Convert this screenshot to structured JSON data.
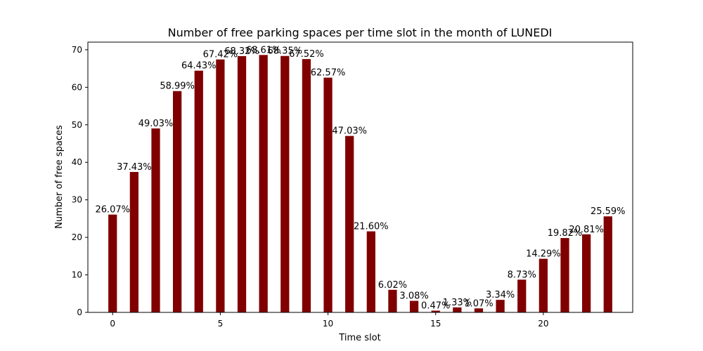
{
  "chart_data": {
    "type": "bar",
    "title": "Number of free parking spaces per time slot in the month of LUNEDI",
    "xlabel": "Time slot",
    "ylabel": "Number of free spaces",
    "x": [
      0,
      1,
      2,
      3,
      4,
      5,
      6,
      7,
      8,
      9,
      10,
      11,
      12,
      13,
      14,
      15,
      16,
      17,
      18,
      19,
      20,
      21,
      22,
      23
    ],
    "values": [
      26.07,
      37.43,
      49.03,
      58.99,
      64.43,
      67.42,
      68.32,
      68.61,
      68.35,
      67.52,
      62.57,
      47.03,
      21.6,
      6.02,
      3.08,
      0.47,
      1.33,
      1.07,
      3.34,
      8.73,
      14.29,
      19.82,
      20.81,
      25.59
    ],
    "bar_labels": [
      "26.07%",
      "37.43%",
      "49.03%",
      "58.99%",
      "64.43%",
      "67.42%",
      "68.32%",
      "68.61%",
      "68.35%",
      "67.52%",
      "62.57%",
      "47.03%",
      "21.60%",
      "6.02%",
      "3.08%",
      "0.47%",
      "1.33%",
      "1.07%",
      "3.34%",
      "8.73%",
      "14.29%",
      "19.82%",
      "20.81%",
      "25.59%"
    ],
    "xticks": [
      0,
      5,
      10,
      15,
      20
    ],
    "yticks": [
      0,
      10,
      20,
      30,
      40,
      50,
      60,
      70
    ],
    "xlim": [
      -1.15,
      24.15
    ],
    "ylim": [
      0,
      72.04
    ],
    "bar_color": "#800000",
    "grid": false,
    "legend": "none"
  }
}
